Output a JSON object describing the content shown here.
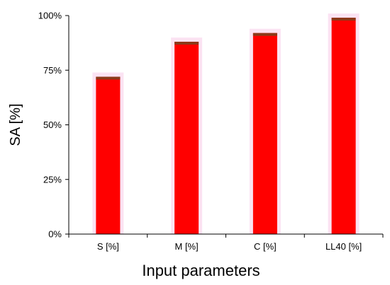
{
  "chart_data": {
    "type": "bar",
    "categories": [
      "S [%]",
      "M [%]",
      "C [%]",
      "LL40 [%]"
    ],
    "values": [
      72,
      88,
      92,
      99
    ],
    "xlabel": "Input parameters",
    "ylabel": "SA [%]",
    "ylim": [
      0,
      100
    ],
    "yticks": [
      0,
      25,
      50,
      75,
      100
    ],
    "ytick_labels": [
      "0%",
      "25%",
      "50%",
      "75%",
      "100%"
    ],
    "grid": false,
    "legend": "none",
    "colors": {
      "bar_fill": "#ff0000",
      "bar_cap": "#8b3a1a",
      "axis": "#000000"
    }
  }
}
